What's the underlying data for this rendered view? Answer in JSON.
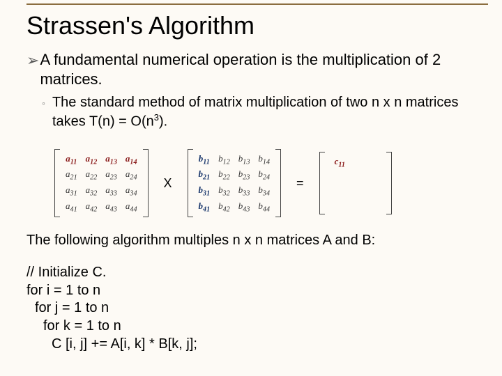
{
  "title": "Strassen's Algorithm",
  "bullet": "A fundamental numerical operation is the multiplication of 2 matrices.",
  "sub_bullet": "The standard method of matrix multiplication of two n x n matrices takes T(n) = O(n",
  "sub_bullet_exp": "3",
  "sub_bullet_end": ").",
  "op_times": "X",
  "op_equals": "=",
  "matrixA": {
    "rows": [
      [
        {
          "t": "a",
          "sub": "11",
          "cls": "a-bold"
        },
        {
          "t": "a",
          "sub": "12",
          "cls": "a-bold"
        },
        {
          "t": "a",
          "sub": "13",
          "cls": "a-bold"
        },
        {
          "t": "a",
          "sub": "14",
          "cls": "a-bold"
        }
      ],
      [
        {
          "t": "a",
          "sub": "21",
          "cls": "a-plain"
        },
        {
          "t": "a",
          "sub": "22",
          "cls": "a-plain"
        },
        {
          "t": "a",
          "sub": "23",
          "cls": "a-plain"
        },
        {
          "t": "a",
          "sub": "24",
          "cls": "a-plain"
        }
      ],
      [
        {
          "t": "a",
          "sub": "31",
          "cls": "a-plain"
        },
        {
          "t": "a",
          "sub": "32",
          "cls": "a-plain"
        },
        {
          "t": "a",
          "sub": "33",
          "cls": "a-plain"
        },
        {
          "t": "a",
          "sub": "34",
          "cls": "a-plain"
        }
      ],
      [
        {
          "t": "a",
          "sub": "41",
          "cls": "a-plain"
        },
        {
          "t": "a",
          "sub": "42",
          "cls": "a-plain"
        },
        {
          "t": "a",
          "sub": "43",
          "cls": "a-plain"
        },
        {
          "t": "a",
          "sub": "44",
          "cls": "a-plain"
        }
      ]
    ]
  },
  "matrixB": {
    "rows": [
      [
        {
          "t": "b",
          "sub": "11",
          "cls": "b-bold"
        },
        {
          "t": "b",
          "sub": "12",
          "cls": "b-plain"
        },
        {
          "t": "b",
          "sub": "13",
          "cls": "b-plain"
        },
        {
          "t": "b",
          "sub": "14",
          "cls": "b-plain"
        }
      ],
      [
        {
          "t": "b",
          "sub": "21",
          "cls": "b-bold"
        },
        {
          "t": "b",
          "sub": "22",
          "cls": "b-plain"
        },
        {
          "t": "b",
          "sub": "23",
          "cls": "b-plain"
        },
        {
          "t": "b",
          "sub": "24",
          "cls": "b-plain"
        }
      ],
      [
        {
          "t": "b",
          "sub": "31",
          "cls": "b-bold"
        },
        {
          "t": "b",
          "sub": "32",
          "cls": "b-plain"
        },
        {
          "t": "b",
          "sub": "33",
          "cls": "b-plain"
        },
        {
          "t": "b",
          "sub": "34",
          "cls": "b-plain"
        }
      ],
      [
        {
          "t": "b",
          "sub": "41",
          "cls": "b-bold"
        },
        {
          "t": "b",
          "sub": "42",
          "cls": "b-plain"
        },
        {
          "t": "b",
          "sub": "43",
          "cls": "b-plain"
        },
        {
          "t": "b",
          "sub": "44",
          "cls": "b-plain"
        }
      ]
    ]
  },
  "matrixC": {
    "rows": [
      [
        {
          "t": "c",
          "sub": "11",
          "cls": "c-bold"
        },
        {
          "t": "",
          "sub": "",
          "cls": ""
        },
        {
          "t": "",
          "sub": "",
          "cls": ""
        },
        {
          "t": "",
          "sub": "",
          "cls": ""
        }
      ],
      [
        {
          "t": "",
          "sub": "",
          "cls": ""
        },
        {
          "t": "",
          "sub": "",
          "cls": ""
        },
        {
          "t": "",
          "sub": "",
          "cls": ""
        },
        {
          "t": "",
          "sub": "",
          "cls": ""
        }
      ],
      [
        {
          "t": "",
          "sub": "",
          "cls": ""
        },
        {
          "t": "",
          "sub": "",
          "cls": ""
        },
        {
          "t": "",
          "sub": "",
          "cls": ""
        },
        {
          "t": "",
          "sub": "",
          "cls": ""
        }
      ],
      [
        {
          "t": "",
          "sub": "",
          "cls": ""
        },
        {
          "t": "",
          "sub": "",
          "cls": ""
        },
        {
          "t": "",
          "sub": "",
          "cls": ""
        },
        {
          "t": "",
          "sub": "",
          "cls": ""
        }
      ]
    ]
  },
  "follow": "The following algorithm multiples n x n matrices A and B:",
  "code": {
    "l0": "// Initialize C.",
    "l1": "for i = 1 to n",
    "l2": "for j = 1 to n",
    "l3": "for k = 1 to n",
    "l4": "C [i, j] += A[i, k] * B[k, j];"
  },
  "colors": {
    "background": "#fdfaf5",
    "title_rule": "#8b6d3f",
    "text": "#000000",
    "a_emph": "#8a1a1a",
    "b_emph": "#16346a"
  }
}
